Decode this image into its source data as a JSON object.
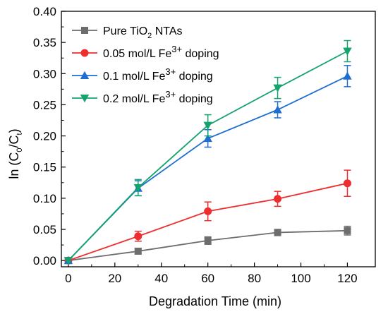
{
  "chart_data": {
    "type": "line",
    "xlabel": "Degradation Time (min)",
    "ylabel_parts": {
      "prefix": "ln (C",
      "sub1": "0",
      "mid": "/C",
      "sub2": "t",
      "suffix": ")"
    },
    "xlim": [
      -3,
      132
    ],
    "ylim": [
      -0.01,
      0.4
    ],
    "xticks": [
      0,
      20,
      40,
      60,
      80,
      100,
      120
    ],
    "yticks": [
      0.0,
      0.05,
      0.1,
      0.15,
      0.2,
      0.25,
      0.3,
      0.35,
      0.4
    ],
    "x": [
      0,
      30,
      60,
      90,
      120
    ],
    "legend_position": "top-left",
    "series": [
      {
        "name_parts": {
          "pre": "Pure TiO",
          "sub": "2",
          "sup": "",
          "post": " NTAs"
        },
        "values": [
          0.0,
          0.015,
          0.032,
          0.045,
          0.048
        ],
        "errors": [
          0.002,
          0.004,
          0.006,
          0.005,
          0.007
        ],
        "color": "#6d6d6d",
        "marker": "square"
      },
      {
        "name_parts": {
          "pre": "0.05 mol/L Fe",
          "sub": "",
          "sup": "3+",
          "post": " doping"
        },
        "values": [
          0.0,
          0.039,
          0.079,
          0.099,
          0.124
        ],
        "errors": [
          0.002,
          0.008,
          0.015,
          0.012,
          0.021
        ],
        "color": "#ee2e2e",
        "marker": "circle"
      },
      {
        "name_parts": {
          "pre": "0.1 mol/L Fe",
          "sub": "",
          "sup": "3+",
          "post": " doping"
        },
        "values": [
          0.0,
          0.116,
          0.196,
          0.242,
          0.296
        ],
        "errors": [
          0.002,
          0.012,
          0.014,
          0.013,
          0.017
        ],
        "color": "#1e6fd0",
        "marker": "triangle-up"
      },
      {
        "name_parts": {
          "pre": "0.2 mol/L Fe",
          "sub": "",
          "sup": "3+",
          "post": " doping"
        },
        "values": [
          0.0,
          0.117,
          0.217,
          0.277,
          0.336
        ],
        "errors": [
          0.002,
          0.013,
          0.017,
          0.017,
          0.017
        ],
        "color": "#14a36d",
        "marker": "triangle-down"
      }
    ]
  }
}
